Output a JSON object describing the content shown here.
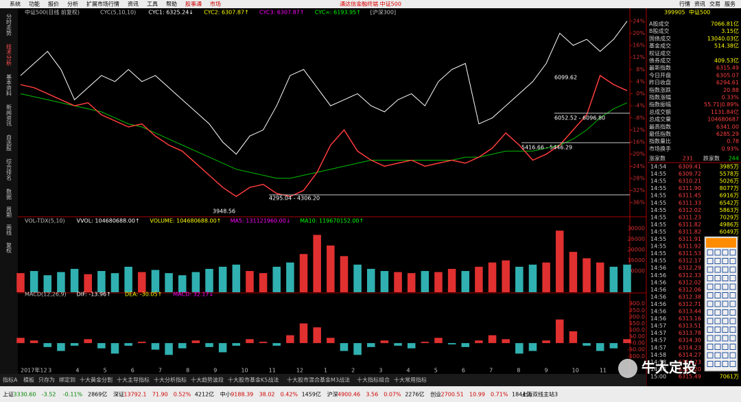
{
  "menu": {
    "items": [
      "系统",
      "功能",
      "报价",
      "分析",
      "扩展市场行情",
      "资讯",
      "工具",
      "帮助",
      "股事通",
      "市场"
    ],
    "title": "通达信金融终端 中证500",
    "right": [
      "行情",
      "资讯",
      "交易",
      "服务"
    ]
  },
  "sidebar": [
    "分时走势",
    "技术分析",
    "基本资料",
    "新闻资讯",
    "自选股",
    "综合排名",
    "数据",
    "周期",
    "画线",
    "复权"
  ],
  "chart_data": [
    {
      "type": "line",
      "title": "中证500(日线 前复权)",
      "indicators": [
        "CYC(5,10,10)",
        "CYC1: 6325.24↓",
        "CYC2: 6307.87↑",
        "CYC3: 6307.87↑",
        "CYC∞: 6193.95↑",
        "[沪深300]"
      ],
      "annotations": [
        "6099.62",
        "6052.52 - 6096.80",
        "5416.66 - 5446.29",
        "4295.04 - 4306.20",
        "3948.56"
      ],
      "ylim": [
        -38,
        26
      ],
      "yticks": [
        {
          "value": 24,
          "label": "24%"
        },
        {
          "value": 20,
          "label": "20%"
        },
        {
          "value": 16,
          "label": "16%"
        },
        {
          "value": 12,
          "label": "12%"
        },
        {
          "value": 8,
          "label": "8%"
        },
        {
          "value": 4,
          "label": "4%"
        },
        {
          "value": 0,
          "label": "0%"
        },
        {
          "value": -4,
          "label": "-4%"
        },
        {
          "value": -8,
          "label": "-8%"
        },
        {
          "value": -12,
          "label": "-12%"
        },
        {
          "value": -16,
          "label": "-16%"
        },
        {
          "value": -20,
          "label": "-20%"
        },
        {
          "value": -24,
          "label": "-24%"
        },
        {
          "value": -28,
          "label": "-28%"
        },
        {
          "value": -32,
          "label": "-32%"
        },
        {
          "value": -36,
          "label": "-36%"
        }
      ],
      "series": [
        {
          "color": "#ffffff",
          "values": [
            6,
            10,
            14,
            8,
            -2,
            2,
            6,
            4,
            8,
            4,
            6,
            2,
            -2,
            -6,
            -10,
            -16,
            -20,
            -14,
            -12,
            -4,
            6,
            8,
            2,
            -4,
            -2,
            0,
            -4,
            -6,
            -2,
            0,
            -4,
            4,
            8,
            10,
            -10,
            -8,
            -4,
            0,
            4,
            10,
            20,
            16,
            18,
            14,
            18,
            24
          ]
        },
        {
          "color": "#00c000",
          "values": [
            0,
            -1,
            -2,
            -3,
            -4,
            -5,
            -6,
            -8,
            -10,
            -11,
            -13,
            -15,
            -17,
            -19,
            -21,
            -23,
            -25,
            -26,
            -27,
            -28,
            -28,
            -27,
            -26,
            -25,
            -24,
            -23,
            -22,
            -22,
            -22,
            -22,
            -22,
            -22,
            -22,
            -21,
            -21,
            -20,
            -19,
            -19,
            -19,
            -18,
            -17,
            -15,
            -12,
            -8,
            -5,
            -3
          ]
        },
        {
          "color": "#ff3c3c",
          "values": [
            3,
            2,
            0,
            -2,
            -4,
            -3,
            -7,
            -9,
            -11,
            -10,
            -14,
            -17,
            -19,
            -23,
            -27,
            -31,
            -34,
            -31,
            -30,
            -33,
            -34,
            -32,
            -26,
            -17,
            -12,
            -19,
            -22,
            -24,
            -23,
            -22,
            -24,
            -23,
            -22,
            -23,
            -21,
            -18,
            -13,
            -17,
            -22,
            -20,
            -17,
            -12,
            -7,
            6,
            3,
            1
          ]
        }
      ]
    },
    {
      "type": "bar",
      "indicators": [
        "VOL-TDX(5,10)",
        "VVOL: 104680688.00↑",
        "VOLUME: 104680688.00↑",
        "MA5: 131121960.00↓",
        "MA10: 119670152.00↑"
      ],
      "ylim": [
        0,
        31000
      ],
      "yticks": [
        30000,
        25000,
        20000,
        15000,
        10000
      ],
      "values": [
        9000,
        10000,
        8000,
        9500,
        11000,
        8500,
        10000,
        9000,
        12000,
        9500,
        10500,
        9000,
        8000,
        9500,
        11000,
        12000,
        13000,
        10000,
        9000,
        12000,
        14000,
        18000,
        27000,
        22000,
        17000,
        13000,
        11000,
        10000,
        9500,
        9000,
        10000,
        9500,
        11000,
        10000,
        12000,
        14000,
        15000,
        12000,
        13000,
        14000,
        29000,
        19000,
        16000,
        14000,
        12000,
        13000
      ]
    },
    {
      "type": "bar",
      "indicators": [
        "MACD(12,26,9)",
        "DIF: -13.96↑",
        "DEA: -30.05↑",
        "MACD: 32.17↓"
      ],
      "ylim": [
        -130,
        330
      ],
      "yticks": [
        {
          "value": 300,
          "label": "300.0"
        },
        {
          "value": 250,
          "label": "250.0"
        },
        {
          "value": 200,
          "label": "200.0"
        },
        {
          "value": 150,
          "label": "150.0"
        },
        {
          "value": 100,
          "label": "100.0"
        },
        {
          "value": 50,
          "label": "50.00"
        },
        {
          "value": 0,
          "label": "0.00"
        },
        {
          "value": -50,
          "label": "-50.00"
        },
        {
          "value": -100,
          "label": "-100.0"
        }
      ],
      "values": [
        40,
        20,
        -30,
        -60,
        -20,
        30,
        -40,
        -80,
        -20,
        10,
        -50,
        -90,
        -40,
        20,
        -30,
        -70,
        -20,
        30,
        10,
        -20,
        60,
        150,
        120,
        40,
        -60,
        -90,
        -30,
        20,
        -20,
        -40,
        10,
        40,
        -10,
        -30,
        20,
        60,
        30,
        -80,
        -60,
        20,
        180,
        90,
        -20,
        -60,
        -40,
        30
      ],
      "xlabels": [
        "2017年12",
        "3",
        "4",
        "5",
        "6",
        "7",
        "8",
        "9",
        "10",
        "11",
        "12",
        "1",
        "2",
        "3",
        "4",
        "5",
        "6",
        "7",
        "8",
        "9",
        "10",
        "11"
      ]
    }
  ],
  "quote": {
    "code": "399905",
    "name": "中证500",
    "rows": [
      [
        "A股成交",
        "7066.81亿"
      ],
      [
        "B股成交",
        "3.15亿"
      ],
      [
        "国债成交",
        "13040.03亿"
      ],
      [
        "基金成交",
        "514.38亿"
      ],
      [
        "权证成交"
      ],
      [
        "债券成交",
        "409.53亿"
      ],
      [
        "最新指数",
        "6315.49"
      ],
      [
        "今日开盘",
        "6305.07"
      ],
      [
        "昨日收盘",
        "6294.61"
      ],
      [
        "指数涨跌",
        "20.88"
      ],
      [
        "指数涨幅",
        "0.33%"
      ],
      [
        "指数振幅",
        "55.71|0.89%"
      ],
      [
        "总成交额",
        "1131.84亿"
      ],
      [
        "总成交量",
        "104680687"
      ],
      [
        "最高指数",
        "6341.00"
      ],
      [
        "最低指数",
        "6285.29"
      ],
      [
        "指数量比",
        "0.78"
      ],
      [
        "市场换手",
        "0.93%"
      ]
    ],
    "breadth": [
      "涨家数",
      "231",
      "跌家数",
      "244"
    ]
  },
  "trades": [
    [
      "14:54",
      "6309.41",
      "3985万"
    ],
    [
      "14:55",
      "6309.72",
      "5578万"
    ],
    [
      "14:55",
      "6310.21",
      "5026万"
    ],
    [
      "14:55",
      "6311.90",
      "8077万"
    ],
    [
      "14:55",
      "6311.45",
      "6916万"
    ],
    [
      "14:55",
      "6311.33",
      "6542万"
    ],
    [
      "14:55",
      "6312.02",
      "5863万"
    ],
    [
      "14:55",
      "6311.23",
      "7029万"
    ],
    [
      "14:55",
      "6311.82",
      "4986万"
    ],
    [
      "14:55",
      "6311.82",
      "6049万"
    ],
    [
      "14:55",
      "6311.91",
      "6024万"
    ],
    [
      "14:55",
      "6311.92"
    ],
    [
      "14:55",
      "6311.53"
    ],
    [
      "14:55",
      "6312.17"
    ],
    [
      "14:56",
      "6312.29"
    ],
    [
      "14:56",
      "6312.33"
    ],
    [
      "14:56",
      "6312.02"
    ],
    [
      "14:56",
      "6312.06"
    ],
    [
      "14:56",
      "6312.38"
    ],
    [
      "14:56",
      "6312.71"
    ],
    [
      "14:56",
      "6313.44"
    ],
    [
      "14:56",
      "6313.16"
    ],
    [
      "14:57",
      "6313.51"
    ],
    [
      "14:57",
      "6313.78"
    ],
    [
      "14:57",
      "6314.30"
    ],
    [
      "14:57",
      "6314.23"
    ],
    [
      "14:58",
      "6314.27"
    ],
    [
      "14:58",
      "6314.23"
    ],
    [
      "14:58",
      "6314.20"
    ],
    [
      "15:00",
      "6315.49",
      "7061万"
    ]
  ],
  "tabs": [
    "指标A",
    "模板",
    "只存为",
    "绑定到",
    "十大黄金分割",
    "十大主导指标",
    "十大分析指标",
    "十大趋势波段",
    "十大股市基金K5战法",
    "十大股市混合基金M3战法",
    "十大指标组合",
    "十大常用指标"
  ],
  "status": [
    [
      "上证",
      "3330.60",
      "-3.52",
      "-0.11%",
      "2869亿"
    ],
    [
      "深证",
      "13792.1",
      "71.90",
      "0.52%",
      "4212亿"
    ],
    [
      "中小",
      "9188.39",
      "38.02",
      "0.42%",
      "1459亿"
    ],
    [
      "沪深",
      "4900.46",
      "3.56",
      "0.07%",
      "2276亿"
    ],
    [
      "创业",
      "2700.51",
      "10.99",
      "0.71%",
      "1844亿"
    ]
  ],
  "server": "上海双线主站3",
  "watermark": "牛大定投"
}
